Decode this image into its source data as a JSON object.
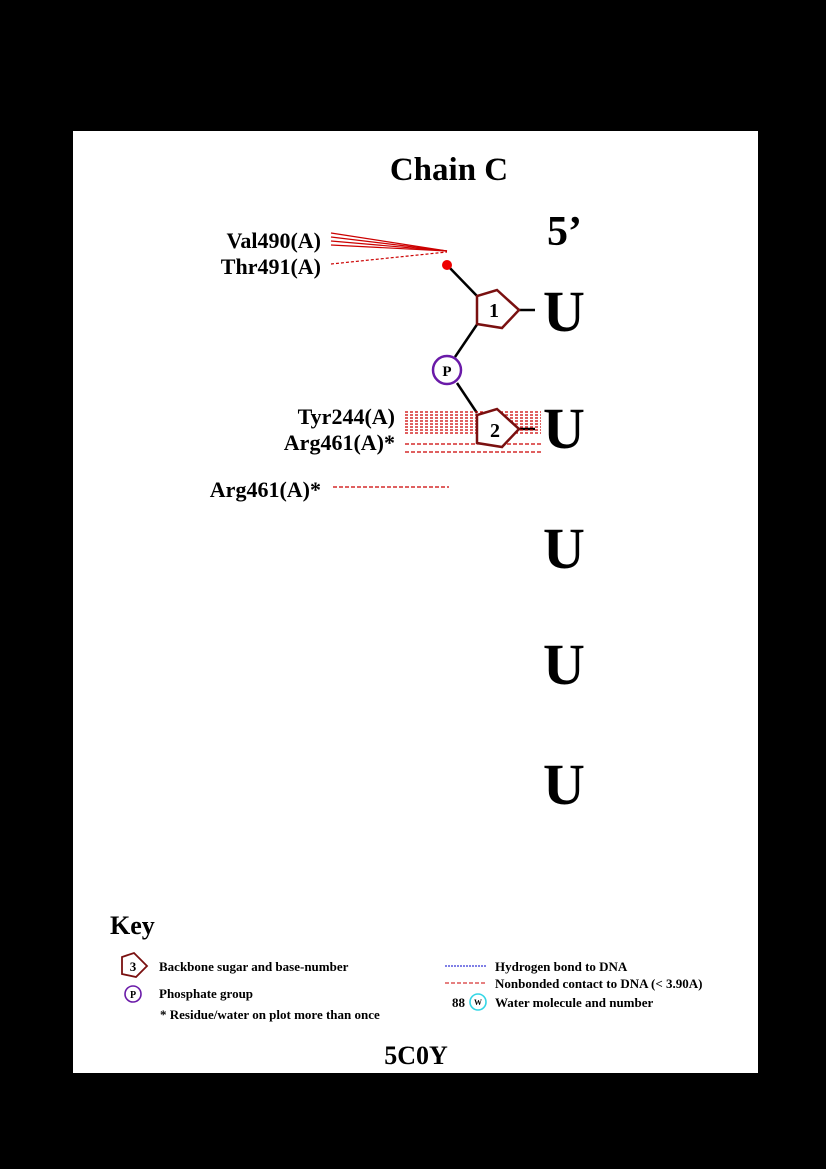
{
  "title": "Chain C",
  "end_label": "5’",
  "footer_id": "5C0Y",
  "residues": [
    {
      "num": "1",
      "base": "U"
    },
    {
      "num": "2",
      "base": "U"
    },
    {
      "num": "",
      "base": "U"
    },
    {
      "num": "",
      "base": "U"
    },
    {
      "num": "",
      "base": "U"
    }
  ],
  "phosphate_label": "P",
  "contacts": {
    "val490": "Val490(A)",
    "thr491": "Thr491(A)",
    "tyr244": "Tyr244(A)",
    "arg461_a": "Arg461(A)*",
    "arg461_b": "Arg461(A)*"
  },
  "key": {
    "heading": "Key",
    "sugar_num": "3",
    "sugar_text": "Backbone sugar and base-number",
    "phos_symbol": "P",
    "phos_text": "Phosphate group",
    "repeat_text": "* Residue/water on plot more than once",
    "hbond_text": "Hydrogen bond to DNA",
    "nonbond_text": "Nonbonded contact to DNA (< 3.90A)",
    "water_num": "88",
    "water_symbol": "W",
    "water_text": "Water molecule and number"
  },
  "colors": {
    "sugar": "#7a1010",
    "phosphate": "#6a1aa8",
    "base": "#7fffff",
    "contact": "#cc0000",
    "oxygen": "#ee0000",
    "hbond": "#0000cc",
    "water": "#33d6e6"
  }
}
